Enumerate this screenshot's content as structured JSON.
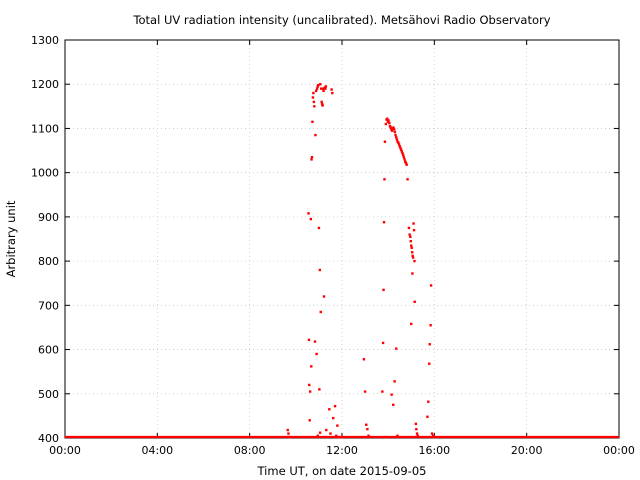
{
  "chart_data": {
    "type": "scatter",
    "title": "Total UV radiation intensity (uncalibrated). Metsähovi Radio Observatory",
    "xlabel": "Time UT, on date 2015-09-05",
    "ylabel": "Arbitrary unit",
    "xlim": [
      0,
      24
    ],
    "ylim": [
      400,
      1300
    ],
    "x_unit": "hours UT",
    "x_ticks": [
      0,
      4,
      8,
      12,
      16,
      20,
      24
    ],
    "x_tick_labels": [
      "00:00",
      "04:00",
      "08:00",
      "12:00",
      "16:00",
      "20:00",
      "00:00"
    ],
    "y_ticks": [
      400,
      500,
      600,
      700,
      800,
      900,
      1000,
      1100,
      1200,
      1300
    ],
    "y_tick_labels": [
      "400",
      "500",
      "600",
      "700",
      "800",
      "900",
      "1000",
      "1100",
      "1200",
      "1300"
    ],
    "grid": true,
    "marker_color": "#ff0000",
    "baseline": {
      "value": 400,
      "from": 0,
      "to": 24
    },
    "series": [
      {
        "points": [
          [
            9.65,
            418
          ],
          [
            9.68,
            410
          ],
          [
            9.72,
            402
          ],
          [
            10.55,
            908
          ],
          [
            10.57,
            622
          ],
          [
            10.58,
            520
          ],
          [
            10.6,
            440
          ],
          [
            10.62,
            505
          ],
          [
            10.65,
            895
          ],
          [
            10.67,
            562
          ],
          [
            10.68,
            1030
          ],
          [
            10.7,
            1035
          ],
          [
            10.72,
            1115
          ],
          [
            10.74,
            1170
          ],
          [
            10.76,
            1180
          ],
          [
            10.78,
            1160
          ],
          [
            10.8,
            1150
          ],
          [
            10.83,
            618
          ],
          [
            10.85,
            1085
          ],
          [
            10.88,
            1185
          ],
          [
            10.9,
            590
          ],
          [
            10.92,
            1190
          ],
          [
            10.95,
            1195
          ],
          [
            10.97,
            1198
          ],
          [
            11.0,
            875
          ],
          [
            11.02,
            510
          ],
          [
            11.04,
            780
          ],
          [
            11.06,
            1200
          ],
          [
            11.08,
            685
          ],
          [
            11.1,
            1190
          ],
          [
            11.12,
            1160
          ],
          [
            11.14,
            1155
          ],
          [
            11.16,
            1152
          ],
          [
            11.18,
            1190
          ],
          [
            11.2,
            1185
          ],
          [
            11.22,
            720
          ],
          [
            11.25,
            1192
          ],
          [
            11.28,
            1190
          ],
          [
            11.3,
            1195
          ],
          [
            11.32,
            418
          ],
          [
            11.45,
            465
          ],
          [
            11.5,
            410
          ],
          [
            11.55,
            1188
          ],
          [
            11.58,
            1180
          ],
          [
            11.62,
            445
          ],
          [
            11.7,
            472
          ],
          [
            11.75,
            405
          ],
          [
            11.8,
            428
          ],
          [
            11.85,
            402
          ],
          [
            12.95,
            578
          ],
          [
            13.0,
            505
          ],
          [
            13.05,
            430
          ],
          [
            13.1,
            420
          ],
          [
            13.15,
            405
          ],
          [
            13.75,
            505
          ],
          [
            13.78,
            615
          ],
          [
            13.8,
            735
          ],
          [
            13.82,
            888
          ],
          [
            13.84,
            985
          ],
          [
            13.86,
            1070
          ],
          [
            13.9,
            1110
          ],
          [
            13.93,
            1120
          ],
          [
            13.96,
            1122
          ],
          [
            13.99,
            1115
          ],
          [
            14.02,
            1118
          ],
          [
            14.05,
            1112
          ],
          [
            14.08,
            1105
          ],
          [
            14.11,
            1102
          ],
          [
            14.14,
            1098
          ],
          [
            14.17,
            1095
          ],
          [
            14.2,
            1100
          ],
          [
            14.23,
            1102
          ],
          [
            14.26,
            1098
          ],
          [
            14.29,
            1092
          ],
          [
            14.32,
            1085
          ],
          [
            14.35,
            1080
          ],
          [
            14.38,
            1075
          ],
          [
            14.41,
            1070
          ],
          [
            14.44,
            1068
          ],
          [
            14.47,
            1064
          ],
          [
            14.5,
            1060
          ],
          [
            14.53,
            1056
          ],
          [
            14.56,
            1052
          ],
          [
            14.59,
            1048
          ],
          [
            14.62,
            1044
          ],
          [
            14.65,
            1040
          ],
          [
            14.68,
            1035
          ],
          [
            14.71,
            1030
          ],
          [
            14.74,
            1025
          ],
          [
            14.77,
            1022
          ],
          [
            14.8,
            1018
          ],
          [
            14.84,
            985
          ],
          [
            14.15,
            498
          ],
          [
            14.22,
            475
          ],
          [
            14.28,
            528
          ],
          [
            14.35,
            602
          ],
          [
            14.4,
            405
          ],
          [
            14.9,
            875
          ],
          [
            14.93,
            860
          ],
          [
            14.96,
            855
          ],
          [
            14.98,
            845
          ],
          [
            15.0,
            835
          ],
          [
            15.02,
            830
          ],
          [
            15.04,
            820
          ],
          [
            15.06,
            812
          ],
          [
            15.08,
            808
          ],
          [
            15.1,
            885
          ],
          [
            15.12,
            870
          ],
          [
            15.14,
            800
          ],
          [
            15.0,
            658
          ],
          [
            15.05,
            772
          ],
          [
            15.15,
            708
          ],
          [
            15.2,
            432
          ],
          [
            15.22,
            420
          ],
          [
            15.25,
            410
          ],
          [
            15.28,
            405
          ],
          [
            15.7,
            448
          ],
          [
            15.74,
            482
          ],
          [
            15.78,
            568
          ],
          [
            15.8,
            612
          ],
          [
            15.84,
            655
          ],
          [
            15.86,
            745
          ],
          [
            15.9,
            410
          ],
          [
            15.95,
            405
          ],
          [
            16.0,
            402
          ],
          [
            12.0,
            402
          ],
          [
            13.9,
            402
          ],
          [
            10.95,
            405
          ],
          [
            11.05,
            412
          ]
        ]
      }
    ]
  }
}
